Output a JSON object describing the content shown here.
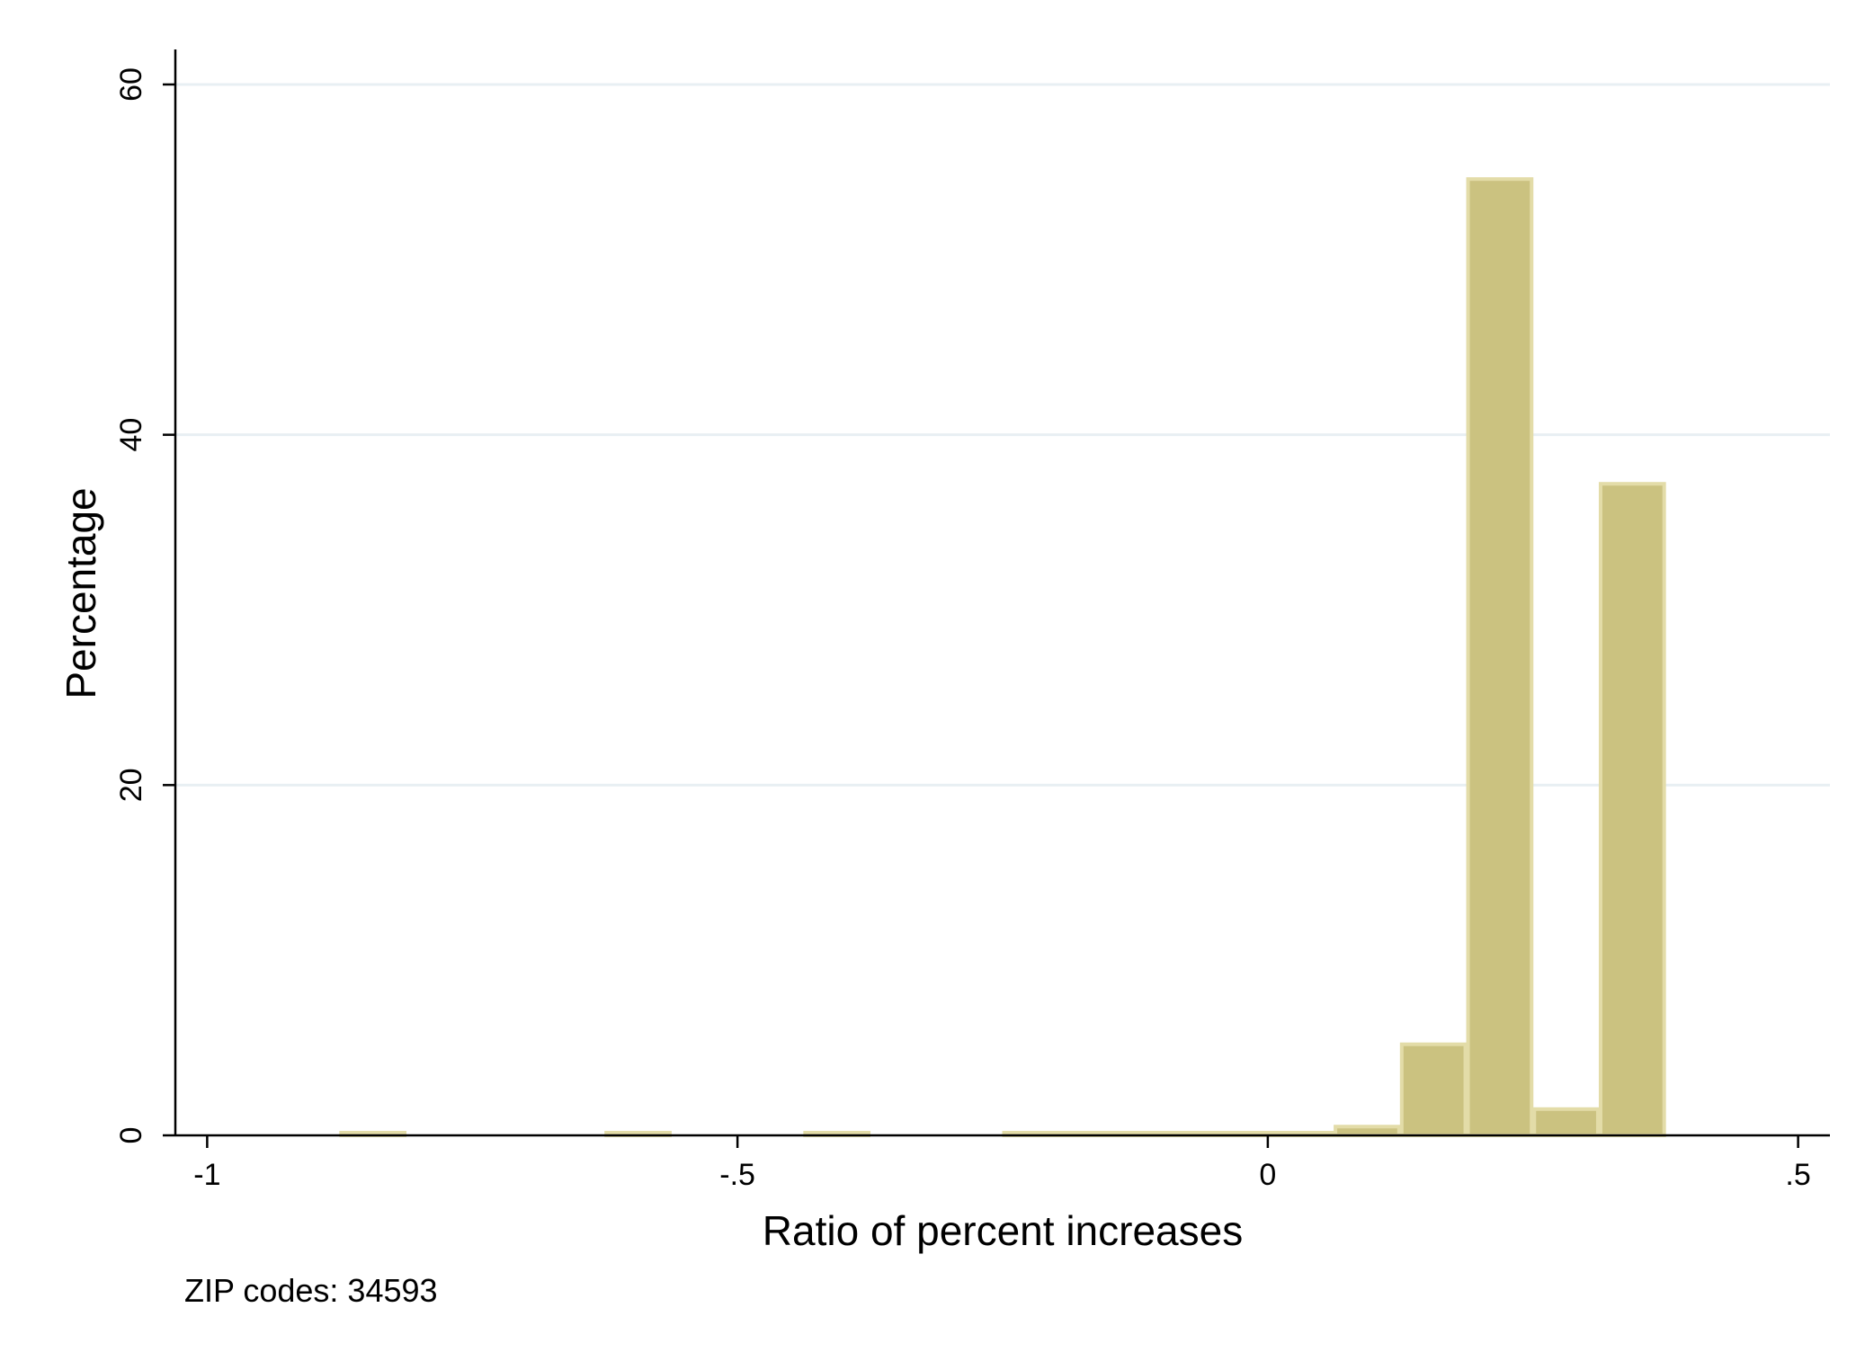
{
  "chart_data": {
    "type": "bar",
    "xlabel": "Ratio of percent increases",
    "ylabel": "Percentage",
    "note": "ZIP codes: 34593",
    "xlim": [
      -1.03,
      0.53
    ],
    "ylim": [
      0,
      62
    ],
    "x_ticks": [
      {
        "value": -1,
        "label": "-1"
      },
      {
        "value": -0.5,
        "label": "-.5"
      },
      {
        "value": 0,
        "label": "0"
      },
      {
        "value": 0.5,
        "label": ".5"
      }
    ],
    "y_ticks": [
      {
        "value": 0,
        "label": "0"
      },
      {
        "value": 20,
        "label": "20"
      },
      {
        "value": 40,
        "label": "40"
      },
      {
        "value": 60,
        "label": "60"
      }
    ],
    "grid": true,
    "bin_width": 0.0625,
    "bins": [
      {
        "start": -0.875,
        "end": -0.8125,
        "value": 0.01
      },
      {
        "start": -0.625,
        "end": -0.5625,
        "value": 0.01
      },
      {
        "start": -0.4375,
        "end": -0.375,
        "value": 0.01
      },
      {
        "start": -0.25,
        "end": -0.1875,
        "value": 0.01
      },
      {
        "start": -0.1875,
        "end": -0.125,
        "value": 0.01
      },
      {
        "start": -0.125,
        "end": -0.0625,
        "value": 0.01
      },
      {
        "start": -0.0625,
        "end": 0.0,
        "value": 0.02
      },
      {
        "start": 0.0,
        "end": 0.0625,
        "value": 0.05
      },
      {
        "start": 0.0625,
        "end": 0.125,
        "value": 0.5
      },
      {
        "start": 0.125,
        "end": 0.1875,
        "value": 5.2
      },
      {
        "start": 0.1875,
        "end": 0.25,
        "value": 54.6
      },
      {
        "start": 0.25,
        "end": 0.3125,
        "value": 1.5
      },
      {
        "start": 0.3125,
        "end": 0.375,
        "value": 37.2
      }
    ],
    "colors": {
      "bar_fill": "#cbc280",
      "bar_outline": "#e3dca8",
      "grid": "#e8eff3",
      "axis": "#000000"
    }
  }
}
